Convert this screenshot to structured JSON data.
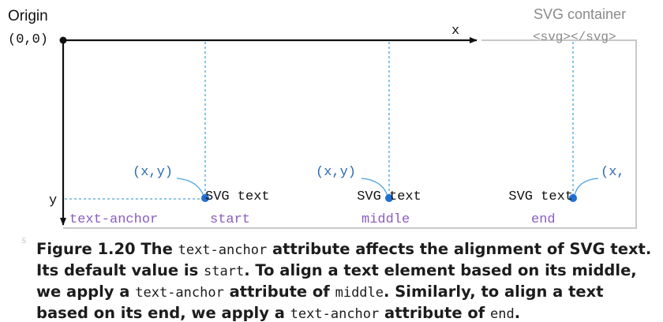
{
  "diagram": {
    "origin_label": "Origin",
    "origin_coords": "(0,0)",
    "x_axis_label": "x",
    "y_axis_label": "y",
    "container_label": "SVG container",
    "container_tag": "<svg></svg>",
    "point_label": "(x,y)",
    "point_label_cut": "(x,",
    "svg_text": "SVG text",
    "anchor_row_label": "text-anchor",
    "anchor_start": "start",
    "anchor_middle": "middle",
    "anchor_end": "end",
    "colors": {
      "axis": "#111111",
      "container_border": "#c8c8c8",
      "dashed": "#4aa3df",
      "point": "#1f6fd1",
      "point_label": "#2b6cb0",
      "anchor_label": "#8a5cc0",
      "container_text": "#8a8a8a"
    }
  },
  "caption": {
    "figure_label": "Figure 1.20",
    "parts": [
      {
        "code": false,
        "text": " The "
      },
      {
        "code": true,
        "text": "text-anchor"
      },
      {
        "code": false,
        "text": " attribute affects the alignment of SVG text. Its default value is "
      },
      {
        "code": true,
        "text": "start"
      },
      {
        "code": false,
        "text": ". To align a text element based on its middle, we apply a "
      },
      {
        "code": true,
        "text": "text-anchor"
      },
      {
        "code": false,
        "text": " attribute of "
      },
      {
        "code": true,
        "text": "middle"
      },
      {
        "code": false,
        "text": ". Similarly, to align a text based on its end, we apply a "
      },
      {
        "code": true,
        "text": "text-anchor"
      },
      {
        "code": false,
        "text": " attribute of "
      },
      {
        "code": true,
        "text": "end"
      },
      {
        "code": false,
        "text": "."
      }
    ]
  },
  "gutter_number": "5"
}
